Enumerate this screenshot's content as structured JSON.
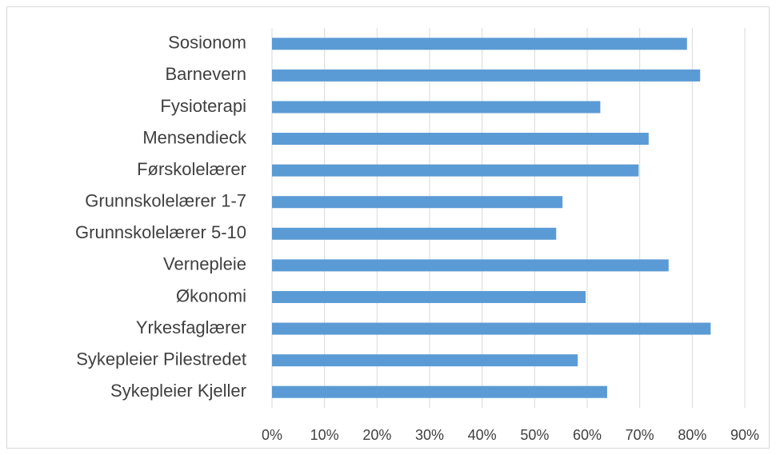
{
  "chart_data": {
    "type": "hbar",
    "categories": [
      "Sosionom",
      "Barnevern",
      "Fysioterapi",
      "Mensendieck",
      "Førskolelærer",
      "Grunnskolelærer 1-7",
      "Grunnskolelærer 5-10",
      "Vernepleie",
      "Økonomi",
      "Yrkesfaglærer",
      "Sykepleier Pilestredet",
      "Sykepleier Kjeller"
    ],
    "values": [
      79,
      81.5,
      62.5,
      71.7,
      69.8,
      55.3,
      54.1,
      75.5,
      59.7,
      83.5,
      58.2,
      63.8
    ],
    "color": "#5b9bd5",
    "xlim": [
      0,
      90
    ],
    "xticks": [
      {
        "value": 0,
        "label": "0%"
      },
      {
        "value": 10,
        "label": "10%"
      },
      {
        "value": 20,
        "label": "20%"
      },
      {
        "value": 30,
        "label": "30%"
      },
      {
        "value": 40,
        "label": "40%"
      },
      {
        "value": 50,
        "label": "50%"
      },
      {
        "value": 60,
        "label": "60%"
      },
      {
        "value": 70,
        "label": "70%"
      },
      {
        "value": 80,
        "label": "80%"
      },
      {
        "value": 90,
        "label": "90%"
      }
    ],
    "grid": true
  }
}
